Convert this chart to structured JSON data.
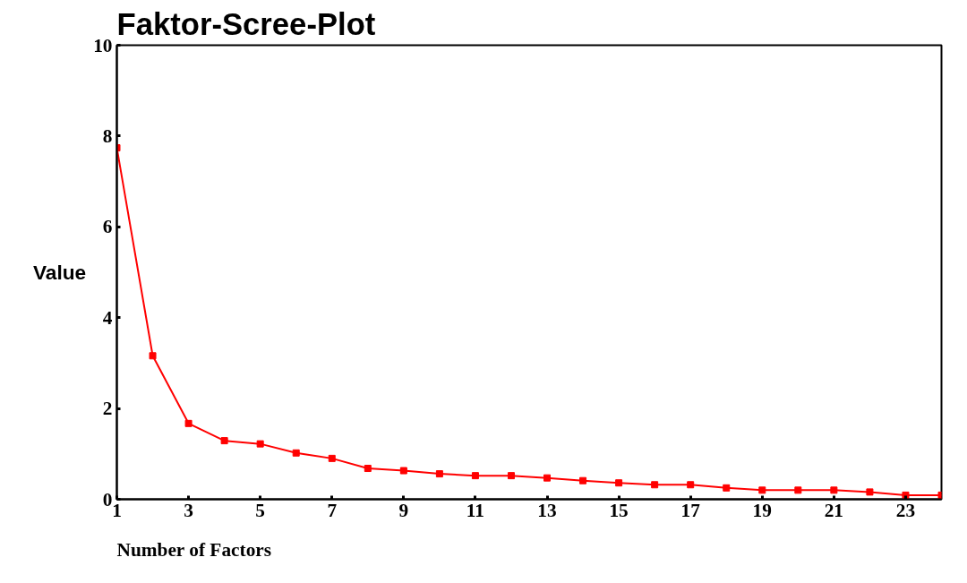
{
  "chart_data": {
    "type": "line",
    "title": "Faktor-Scree-Plot",
    "xlabel": "Number of Factors",
    "ylabel": "Value",
    "x": [
      1,
      2,
      3,
      4,
      5,
      6,
      7,
      8,
      9,
      10,
      11,
      12,
      13,
      14,
      15,
      16,
      17,
      18,
      19,
      20,
      21,
      22,
      23,
      24
    ],
    "series": [
      {
        "color": "#ff0000",
        "values": [
          7.74,
          3.16,
          1.67,
          1.29,
          1.22,
          1.02,
          0.9,
          0.68,
          0.63,
          0.56,
          0.52,
          0.52,
          0.47,
          0.41,
          0.36,
          0.32,
          0.32,
          0.25,
          0.2,
          0.2,
          0.2,
          0.16,
          0.09,
          0.09
        ]
      }
    ],
    "xlim": [
      1,
      24
    ],
    "xticks": [
      1,
      3,
      5,
      7,
      9,
      11,
      13,
      15,
      17,
      19,
      21,
      23
    ],
    "ylim": [
      0,
      10
    ],
    "yticks": [
      0,
      2,
      4,
      6,
      8,
      10
    ],
    "grid": false,
    "marker": "square",
    "line_style": "solid"
  }
}
